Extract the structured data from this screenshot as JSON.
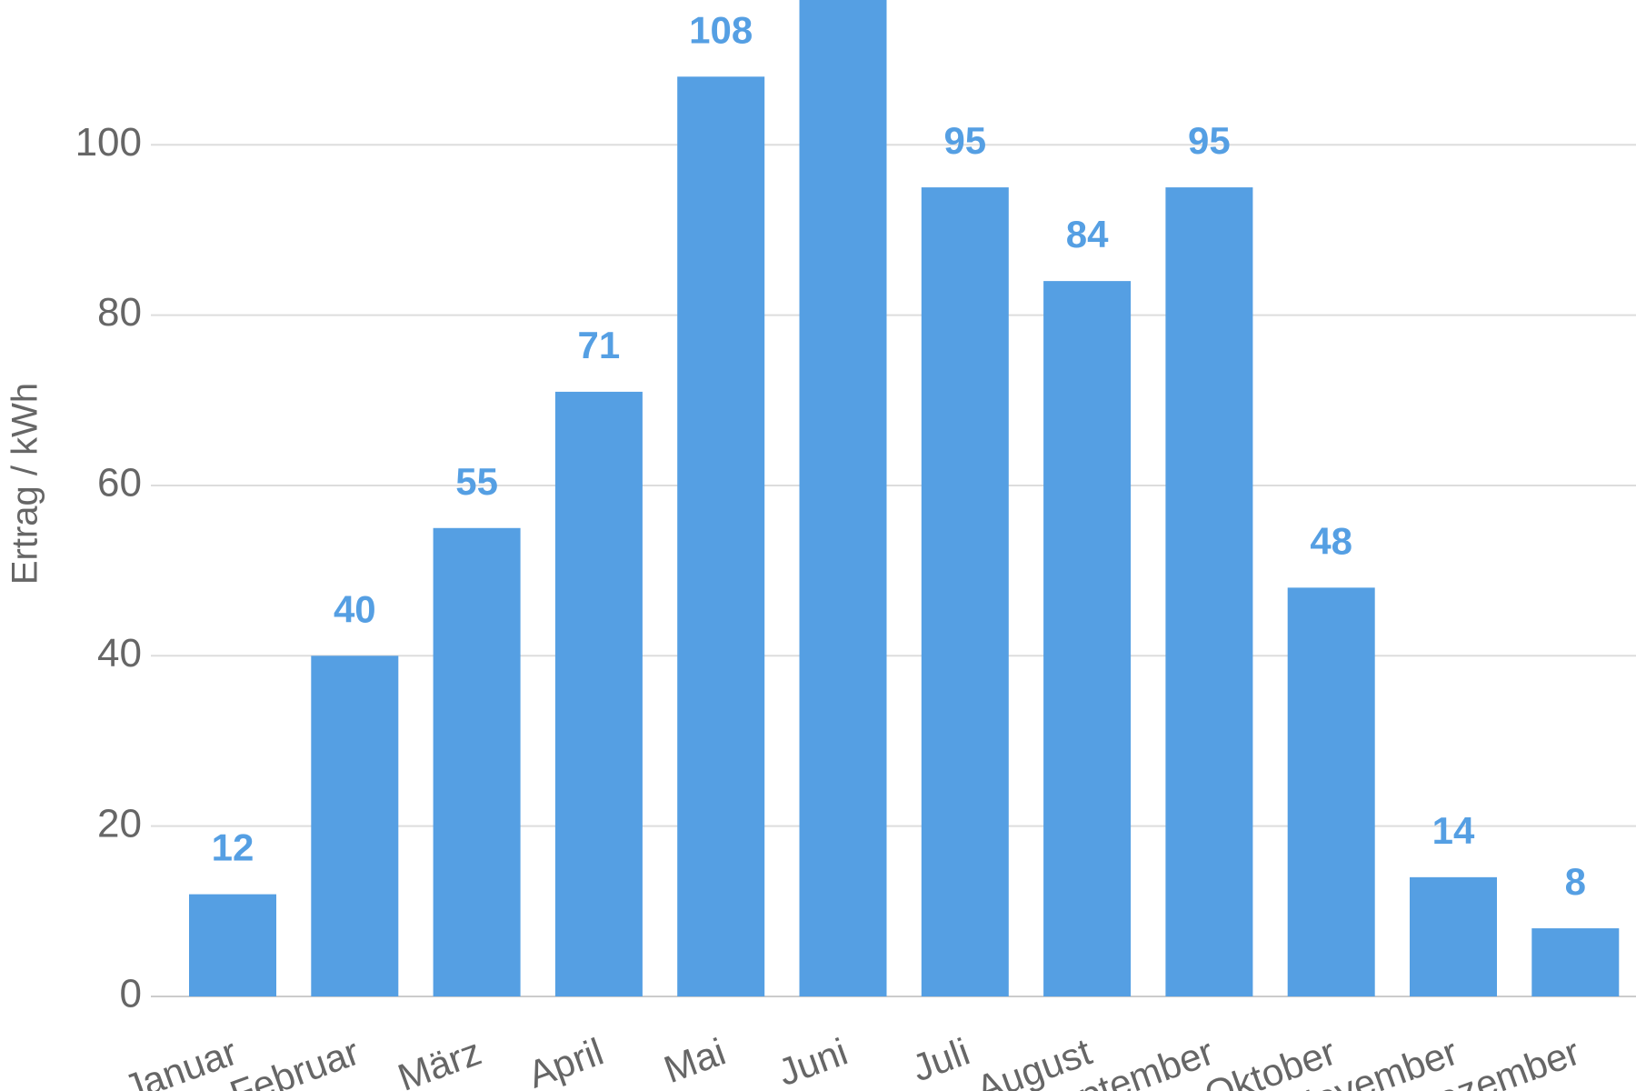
{
  "chart_data": {
    "type": "bar",
    "y_label": "Ertrag / kWh",
    "categories": [
      "Januar",
      "Februar",
      "März",
      "April",
      "Mai",
      "Juni",
      "Juli",
      "August",
      "September",
      "Oktober",
      "November",
      "Dezember"
    ],
    "values": [
      12,
      40,
      55,
      71,
      108,
      120,
      95,
      84,
      95,
      48,
      14,
      8
    ],
    "color": "#559fe3",
    "ylim": [
      0,
      117
    ],
    "yticks": [
      0,
      20,
      40,
      60,
      80,
      100
    ],
    "grid": true
  }
}
